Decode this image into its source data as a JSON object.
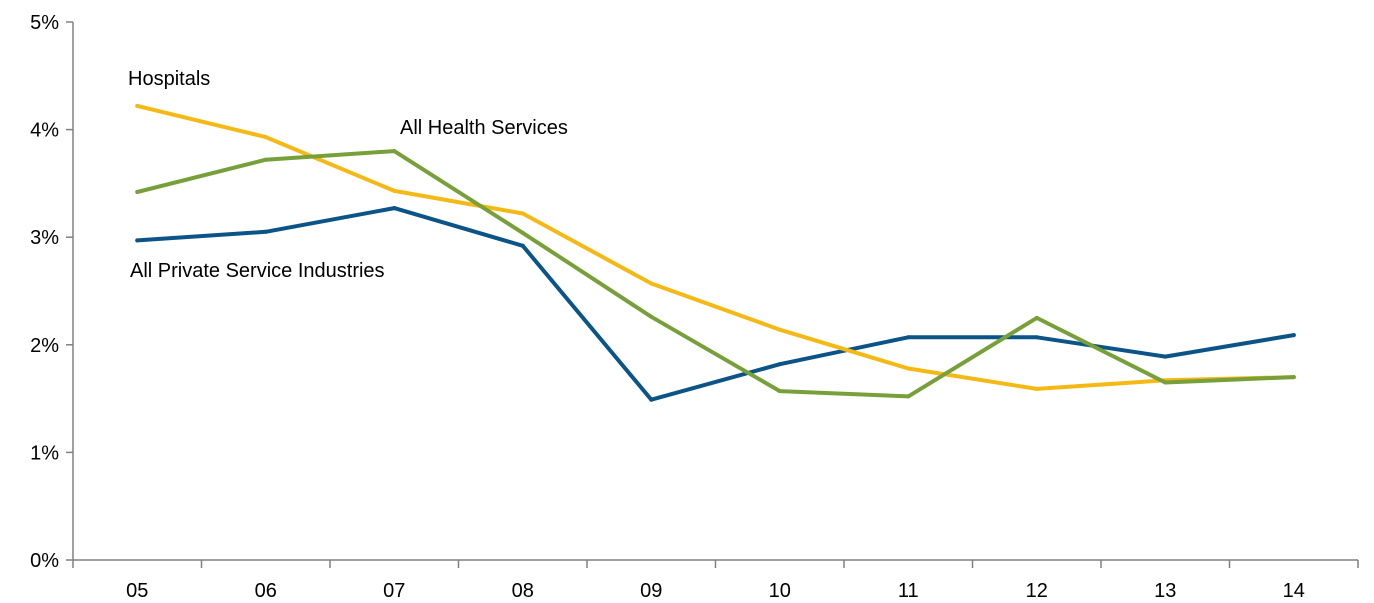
{
  "chart_data": {
    "type": "line",
    "categories": [
      "05",
      "06",
      "07",
      "08",
      "09",
      "10",
      "11",
      "12",
      "13",
      "14"
    ],
    "ylim": [
      0,
      5
    ],
    "yticks": [
      0,
      1,
      2,
      3,
      4,
      5
    ],
    "ytick_labels": [
      "0%",
      "1%",
      "2%",
      "3%",
      "4%",
      "5%"
    ],
    "grid": false,
    "legend": "none (series labeled directly on the plot)",
    "series": [
      {
        "key": "hospitals",
        "name": "Hospitals",
        "color": "#F5B915",
        "values": [
          4.22,
          3.93,
          3.43,
          3.22,
          2.57,
          2.14,
          1.78,
          1.59,
          1.67,
          1.7
        ]
      },
      {
        "key": "health",
        "name": "All Health Services",
        "color": "#77A03A",
        "values": [
          3.42,
          3.72,
          3.8,
          3.04,
          2.26,
          1.57,
          1.52,
          2.25,
          1.65,
          1.7
        ]
      },
      {
        "key": "private",
        "name": "All Private Service Industries",
        "color": "#0B5488",
        "values": [
          2.97,
          3.05,
          3.27,
          2.92,
          1.49,
          1.82,
          2.07,
          2.07,
          1.89,
          2.09
        ]
      }
    ]
  }
}
